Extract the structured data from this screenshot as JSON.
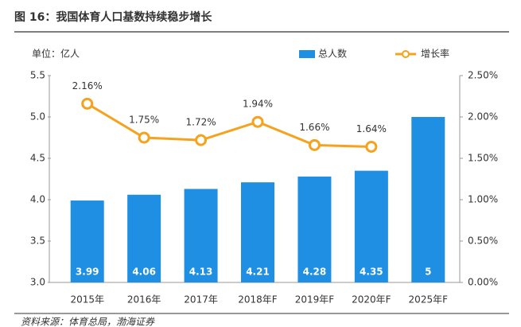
{
  "chart_data": {
    "type": "bar_line",
    "title": "图 16：我国体育人口基数持续稳步增长",
    "unit_label": "单位：亿人",
    "source": "资料来源：体育总局，渤海证券",
    "categories": [
      "2015年",
      "2016年",
      "2017年",
      "2018年F",
      "2019年F",
      "2020年F",
      "2025年F"
    ],
    "series": [
      {
        "name": "总人数",
        "color": "#1e8fe3",
        "type": "bar",
        "values": [
          3.99,
          4.06,
          4.13,
          4.21,
          4.28,
          4.35,
          5
        ]
      },
      {
        "name": "增长率",
        "color": "#f5a31e",
        "type": "line",
        "axis": "y2",
        "values": [
          2.16,
          1.75,
          1.72,
          1.94,
          1.66,
          1.64,
          null
        ],
        "value_labels": [
          "2.16%",
          "1.75%",
          "1.72%",
          "1.94%",
          "1.66%",
          "1.64%",
          null
        ]
      }
    ],
    "ylim": [
      3.0,
      5.5
    ],
    "yticks": [
      {
        "value": 3,
        "label": "3.0"
      },
      3.5,
      {
        "value": 4,
        "label": "4.0"
      },
      4.5,
      {
        "value": 5,
        "label": "5.0"
      },
      5.5
    ],
    "y2lim": [
      0,
      2.5
    ],
    "y2ticks": [
      {
        "value": 0,
        "label": "0.00%"
      },
      {
        "value": 0.5,
        "label": "0.50%"
      },
      {
        "value": 1,
        "label": "1.00%"
      },
      {
        "value": 1.5,
        "label": "1.50%"
      },
      {
        "value": 2,
        "label": "2.00%"
      },
      {
        "value": 2.5,
        "label": "2.50%"
      }
    ],
    "legend": "top-right"
  }
}
